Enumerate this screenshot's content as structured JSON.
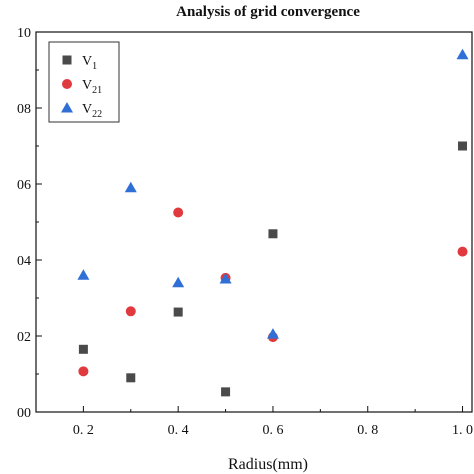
{
  "chart_data": {
    "type": "scatter",
    "title": "Analysis of grid convergence",
    "xlabel": "Radius(mm)",
    "ylabel": "",
    "xlim": [
      0.1,
      1.02
    ],
    "ylim": [
      0,
      1.0
    ],
    "xticks": [
      0.2,
      0.4,
      0.6,
      0.8,
      1.0
    ],
    "xtick_labels": [
      "0. 2",
      "0. 4",
      "0. 6",
      "0. 8",
      "1. 0"
    ],
    "yticks": [
      0,
      0.2,
      0.4,
      0.6,
      0.8,
      1.0
    ],
    "ytick_labels": [
      "00",
      "02",
      "04",
      "06",
      "08",
      "10"
    ],
    "grid": false,
    "legend_position": "top-left",
    "series": [
      {
        "name": "V1",
        "name_main": "V",
        "name_sub": "1",
        "marker": "square",
        "color": "#4a4a4a",
        "x": [
          0.2,
          0.3,
          0.4,
          0.5,
          0.6,
          1.0
        ],
        "y": [
          0.165,
          0.09,
          0.263,
          0.053,
          0.469,
          0.7
        ]
      },
      {
        "name": "V21",
        "name_main": "V",
        "name_sub": "21",
        "marker": "circle",
        "color": "#e0393e",
        "x": [
          0.2,
          0.3,
          0.4,
          0.5,
          0.6,
          1.0
        ],
        "y": [
          0.107,
          0.265,
          0.525,
          0.353,
          0.197,
          0.422
        ]
      },
      {
        "name": "V22",
        "name_main": "V",
        "name_sub": "22",
        "marker": "triangle",
        "color": "#2f6fd6",
        "x": [
          0.2,
          0.3,
          0.4,
          0.5,
          0.6,
          1.0
        ],
        "y": [
          0.36,
          0.59,
          0.34,
          0.35,
          0.205,
          0.94
        ]
      }
    ]
  }
}
